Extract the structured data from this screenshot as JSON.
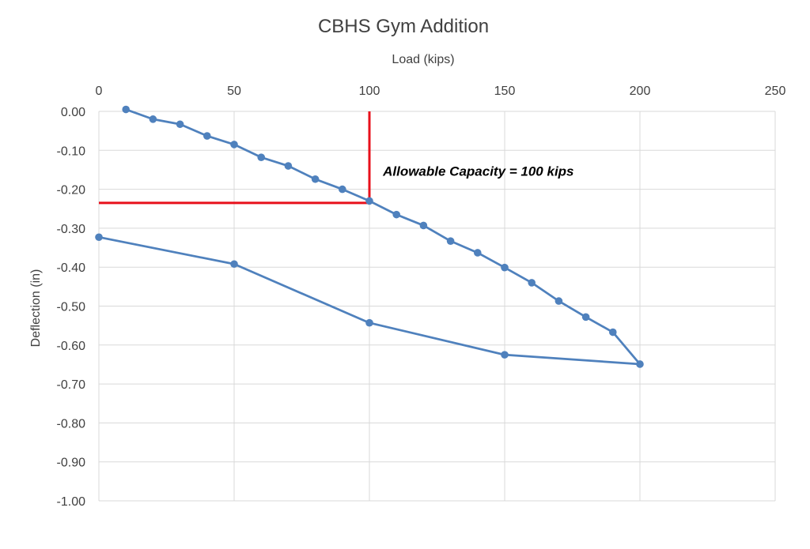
{
  "chart_data": {
    "type": "scatter",
    "title": "CBHS Gym Addition",
    "xlabel": "Load (kips)",
    "ylabel": "Deflection (in)",
    "x_axis_position": "top",
    "xlim": [
      0,
      250
    ],
    "ylim": [
      -1.0,
      0.0
    ],
    "x_ticks": [
      0,
      50,
      100,
      150,
      200,
      250
    ],
    "y_ticks": [
      0.0,
      -0.1,
      -0.2,
      -0.3,
      -0.4,
      -0.5,
      -0.6,
      -0.7,
      -0.8,
      -0.9,
      -1.0
    ],
    "y_tick_labels": [
      "0.00",
      "-0.10",
      "-0.20",
      "-0.30",
      "-0.40",
      "-0.50",
      "-0.60",
      "-0.70",
      "-0.80",
      "-0.90",
      "-1.00"
    ],
    "grid": true,
    "series": [
      {
        "color": "#4f81bd",
        "x": [
          10,
          20,
          30,
          40,
          50,
          60,
          70,
          80,
          90,
          100,
          110,
          120,
          130,
          140,
          150,
          160,
          170,
          180,
          190,
          200,
          150,
          100,
          50,
          0
        ],
        "y": [
          0.005,
          -0.02,
          -0.033,
          -0.063,
          -0.085,
          -0.118,
          -0.14,
          -0.174,
          -0.2,
          -0.23,
          -0.265,
          -0.293,
          -0.333,
          -0.363,
          -0.401,
          -0.44,
          -0.487,
          -0.528,
          -0.567,
          -0.649,
          -0.625,
          -0.543,
          -0.392,
          -0.323
        ]
      }
    ],
    "reference_lines": {
      "color": "#e8101b",
      "vertical_x": 100,
      "horizontal_y": -0.235
    },
    "annotation": {
      "text": "Allowable Capacity = 100 kips",
      "x": 105,
      "y": -0.165
    }
  }
}
